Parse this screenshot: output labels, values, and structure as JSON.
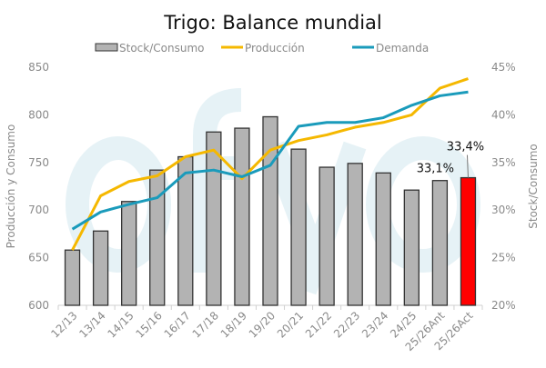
{
  "chart_data": {
    "type": "bar+line",
    "title": "Trigo: Balance mundial",
    "watermark": "ofyo",
    "categories": [
      "12/13",
      "13/14",
      "14/15",
      "15/16",
      "16/17",
      "17/18",
      "18/19",
      "19/20",
      "20/21",
      "21/22",
      "22/23",
      "23/24",
      "24/25",
      "25/26Ant",
      "25/26Act"
    ],
    "series": [
      {
        "name": "Stock/Consumo",
        "type": "bar",
        "axis": "right",
        "color": "#b3b3b3",
        "highlight_color": "#ff0000",
        "highlight_index": 14,
        "values": [
          25.8,
          27.8,
          30.9,
          34.2,
          35.6,
          38.2,
          38.6,
          39.8,
          36.4,
          34.5,
          34.9,
          33.9,
          32.1,
          33.1,
          33.4
        ]
      },
      {
        "name": "Producción",
        "type": "line",
        "axis": "left",
        "color": "#f5b800",
        "values": [
          658,
          715,
          730,
          736,
          756,
          763,
          733,
          763,
          773,
          779,
          787,
          792,
          800,
          828,
          838
        ]
      },
      {
        "name": "Demanda",
        "type": "line",
        "axis": "left",
        "color": "#1a9bbb",
        "values": [
          680,
          698,
          706,
          713,
          739,
          742,
          735,
          747,
          788,
          792,
          792,
          797,
          810,
          820,
          824
        ]
      }
    ],
    "data_labels": [
      {
        "index": 13,
        "text": "33,1%"
      },
      {
        "index": 14,
        "text": "33,4%"
      }
    ],
    "ylabel": "Producción y Consumo",
    "ylim": [
      600,
      850
    ],
    "yticks": [
      "600",
      "650",
      "700",
      "750",
      "800",
      "850"
    ],
    "y2label": "Stock/Consumo",
    "y2lim": [
      20,
      45
    ],
    "y2ticks": [
      "20%",
      "25%",
      "30%",
      "35%",
      "40%",
      "45%"
    ],
    "legend": "top",
    "grid": false
  }
}
